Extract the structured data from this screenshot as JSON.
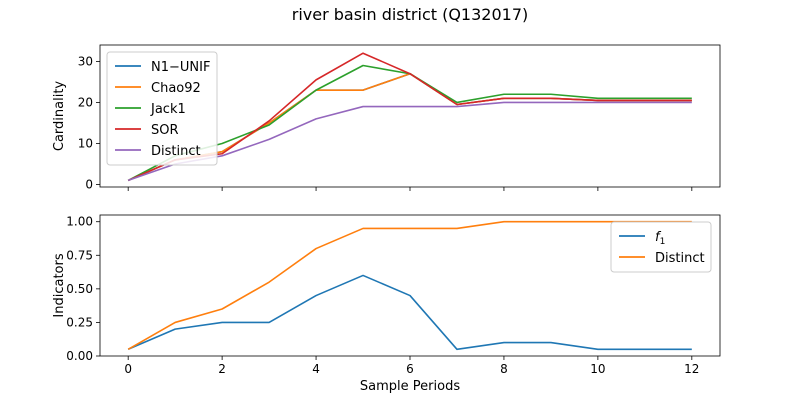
{
  "figure": {
    "title": "river basin district (Q132017)"
  },
  "chart_data": [
    {
      "type": "line",
      "ylabel": "Cardinality",
      "xlabel": "",
      "xlim": [
        -0.6,
        12.6
      ],
      "ylim": [
        -0.6,
        34.0
      ],
      "xticks": [
        0,
        2,
        4,
        6,
        8,
        10,
        12
      ],
      "xticklabels_visible": false,
      "yticks": [
        0,
        10,
        20,
        30
      ],
      "legend": "upper-left",
      "x": [
        0,
        1,
        2,
        3,
        4,
        5,
        6,
        7,
        8,
        9,
        10,
        11,
        12
      ],
      "series": [
        {
          "name": "N1−UNIF",
          "color": "#1f77b4",
          "values": [
            1,
            6,
            8,
            15,
            23,
            23,
            27,
            19.5,
            21,
            21,
            20.5,
            20.5,
            20.5
          ]
        },
        {
          "name": "Chao92",
          "color": "#ff7f0e",
          "values": [
            1,
            6,
            8,
            15,
            23,
            23,
            27,
            19.5,
            21,
            21,
            20.5,
            20.5,
            20.5
          ]
        },
        {
          "name": "Jack1",
          "color": "#2ca02c",
          "values": [
            1,
            7,
            10,
            14.5,
            23,
            29,
            27,
            20,
            22,
            22,
            21,
            21,
            21
          ]
        },
        {
          "name": "SOR",
          "color": "#d62728",
          "values": [
            1,
            6,
            7.5,
            15.5,
            25.5,
            32,
            27,
            19.5,
            21,
            21,
            20.5,
            20.5,
            20.5
          ]
        },
        {
          "name": "Distinct",
          "color": "#9467bd",
          "values": [
            1,
            5,
            7,
            11,
            16,
            19,
            19,
            19,
            20,
            20,
            20,
            20,
            20
          ]
        }
      ]
    },
    {
      "type": "line",
      "ylabel": "Indicators",
      "xlabel": "Sample Periods",
      "xlim": [
        -0.6,
        12.6
      ],
      "ylim": [
        0.0,
        1.05
      ],
      "xticks": [
        0,
        2,
        4,
        6,
        8,
        10,
        12
      ],
      "xticklabels": [
        "0",
        "2",
        "4",
        "6",
        "8",
        "10",
        "12"
      ],
      "yticks": [
        0.0,
        0.25,
        0.5,
        0.75,
        1.0
      ],
      "yticklabels": [
        "0.00",
        "0.25",
        "0.50",
        "0.75",
        "1.00"
      ],
      "legend": "upper-right",
      "x": [
        0,
        1,
        2,
        3,
        4,
        5,
        6,
        7,
        8,
        9,
        10,
        11,
        12
      ],
      "series": [
        {
          "name": "f",
          "name_sub": "1",
          "color": "#1f77b4",
          "values": [
            0.05,
            0.2,
            0.25,
            0.25,
            0.45,
            0.6,
            0.45,
            0.05,
            0.1,
            0.1,
            0.05,
            0.05,
            0.05
          ]
        },
        {
          "name": "Distinct",
          "color": "#ff7f0e",
          "values": [
            0.05,
            0.25,
            0.35,
            0.55,
            0.8,
            0.95,
            0.95,
            0.95,
            1.0,
            1.0,
            1.0,
            1.0,
            1.0
          ]
        }
      ]
    }
  ]
}
